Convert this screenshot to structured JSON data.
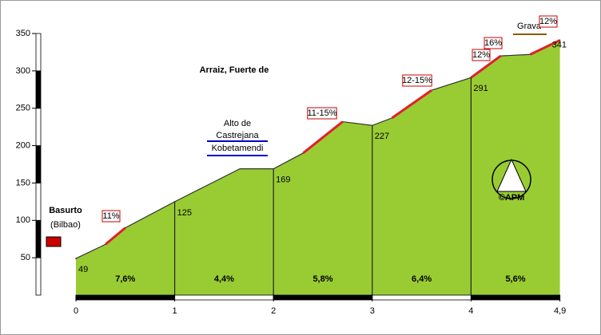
{
  "chart_data": {
    "type": "area",
    "title": "Arraiz, Fuerte de",
    "x": [
      0,
      0.3,
      0.5,
      1,
      1.3,
      1.66,
      2,
      2.3,
      2.7,
      3,
      3.2,
      3.6,
      4,
      4.3,
      4.6,
      4.9
    ],
    "values": [
      49,
      68,
      90,
      125,
      145,
      169,
      169,
      190,
      232,
      227,
      237,
      274,
      291,
      320,
      322,
      341
    ],
    "color": "#99cc33",
    "markers": {
      "x": [
        0,
        1,
        2,
        3,
        4,
        4.9
      ],
      "values": [
        49,
        125,
        169,
        227,
        291,
        341
      ]
    },
    "segments": {
      "values": [
        7.6,
        4.4,
        5.8,
        6.4,
        5.6
      ],
      "value_labels": [
        "7,6%",
        "4,4%",
        "5,8%",
        "6,4%",
        "5,6%"
      ]
    },
    "xlim": [
      0,
      4.9
    ],
    "ylim": [
      0,
      350
    ],
    "xticks": [
      0,
      1,
      2,
      3,
      4,
      {
        "value": 4.9,
        "label": "4,9"
      }
    ],
    "yticks": [
      50,
      100,
      150,
      200,
      250,
      300,
      350
    ],
    "annotations": [
      "Basurto",
      "(Bilbao)",
      "11%",
      "Alto de",
      "Castrejana",
      "Kobetamendi",
      "11-15%",
      "12-15%",
      "12%",
      "16%",
      "Grava",
      "12%",
      "©APM"
    ]
  }
}
